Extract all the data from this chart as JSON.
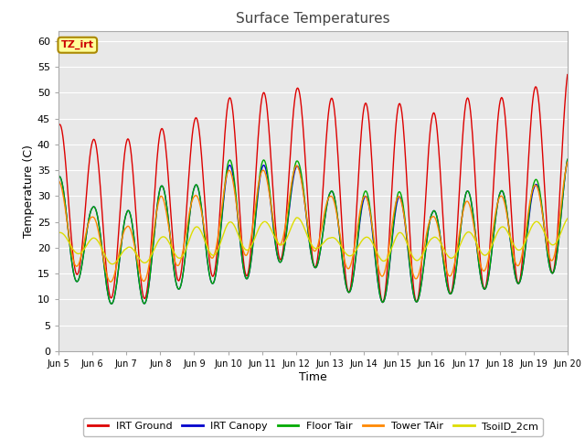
{
  "title": "Surface Temperatures",
  "xlabel": "Time",
  "ylabel": "Temperature (C)",
  "ylim": [
    0,
    62
  ],
  "yticks": [
    0,
    5,
    10,
    15,
    20,
    25,
    30,
    35,
    40,
    45,
    50,
    55,
    60
  ],
  "fig_bg_color": "#ffffff",
  "plot_bg_color": "#e8e8e8",
  "series": [
    {
      "name": "IRT Ground",
      "color": "#dd0000"
    },
    {
      "name": "IRT Canopy",
      "color": "#0000cc"
    },
    {
      "name": "Floor Tair",
      "color": "#00aa00"
    },
    {
      "name": "Tower TAir",
      "color": "#ff8800"
    },
    {
      "name": "TsoilD_2cm",
      "color": "#dddd00"
    }
  ],
  "annotation_text": "TZ_irt",
  "annotation_bg": "#ffff99",
  "annotation_border": "#aa8800",
  "n_days": 15,
  "start_day": 5,
  "points_per_day": 48,
  "irt_ground_peaks": [
    44,
    41,
    41,
    43,
    45,
    49,
    50,
    51,
    49,
    48,
    48,
    46,
    49,
    49,
    51,
    55
  ],
  "irt_ground_mins": [
    17,
    13,
    8,
    12,
    15,
    14,
    15,
    20,
    13,
    10,
    9,
    10,
    12,
    12,
    14,
    16
  ],
  "irt_canopy_peaks": [
    34,
    28,
    27,
    32,
    32,
    36,
    36,
    36,
    31,
    30,
    30,
    27,
    31,
    31,
    32,
    38
  ],
  "irt_canopy_mins": [
    14,
    13,
    6,
    12,
    12,
    14,
    14,
    20,
    13,
    10,
    9,
    10,
    12,
    12,
    14,
    16
  ],
  "floor_tair_peaks": [
    34,
    28,
    27,
    32,
    32,
    37,
    37,
    37,
    31,
    31,
    31,
    27,
    31,
    31,
    33,
    38
  ],
  "floor_tair_mins": [
    14,
    13,
    6,
    12,
    12,
    14,
    14,
    20,
    13,
    10,
    9,
    10,
    12,
    12,
    14,
    16
  ],
  "tower_tair_peaks": [
    33,
    26,
    24,
    30,
    30,
    35,
    35,
    36,
    30,
    30,
    30,
    26,
    29,
    30,
    32,
    37
  ],
  "tower_tair_mins": [
    18,
    15,
    12,
    15,
    18,
    18,
    19,
    22,
    17,
    15,
    14,
    14,
    15,
    16,
    17,
    18
  ],
  "tsoil_peaks": [
    23,
    22,
    20,
    22,
    24,
    25,
    25,
    26,
    22,
    22,
    23,
    22,
    23,
    24,
    25,
    26
  ],
  "tsoil_mins": [
    20,
    18,
    16,
    18,
    18,
    19,
    20,
    21,
    19,
    18,
    17,
    18,
    18,
    19,
    20,
    21
  ]
}
